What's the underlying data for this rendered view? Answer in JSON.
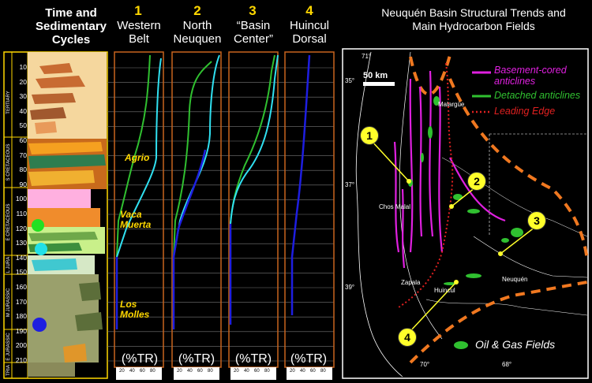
{
  "left_panel": {
    "title": "Time and Sedimentary Cycles",
    "era_labels": [
      "TERTIARY",
      "S CRETACEOUS",
      "E CRETACEOUS",
      "L JURA",
      "M JURASSIC",
      "E JURASSIC",
      "TRIA"
    ],
    "age_ticks": [
      "10",
      "20",
      "30",
      "40",
      "50",
      "60",
      "70",
      "80",
      "90",
      "100",
      "110",
      "120",
      "130",
      "140",
      "150",
      "160",
      "170",
      "180",
      "190",
      "200",
      "210"
    ]
  },
  "columns": [
    {
      "number": "1",
      "title": "Western Belt",
      "unit": "(%TR)"
    },
    {
      "number": "2",
      "title": "North Neuquen",
      "unit": "(%TR)"
    },
    {
      "number": "3",
      "title": "“Basin Center”",
      "unit": "(%TR)"
    },
    {
      "number": "4",
      "title": "Huincul Dorsal",
      "unit": "(%TR)"
    }
  ],
  "scale_ticks": [
    "20",
    "40",
    "60",
    "80"
  ],
  "formations": [
    "Agrio",
    "Vaca Muerta",
    "Los Molles"
  ],
  "map": {
    "title": "Neuquén Basin Structural Trends and Main Hydrocarbon Fields",
    "scale_label": "50 km",
    "legend": [
      {
        "label": "Basement-cored anticlines",
        "color": "#e020e0"
      },
      {
        "label": "Detached anticlines",
        "color": "#30c030"
      },
      {
        "label": "Leading Edge",
        "color": "#e02020"
      }
    ],
    "fields_label": "Oil & Gas Fields",
    "coords": [
      "71°",
      "35°",
      "37°",
      "39°",
      "70°",
      "68°"
    ],
    "places": [
      "Malargüe",
      "Chos Malal",
      "Zapala",
      "Huincul",
      "Neuquén"
    ],
    "callouts": [
      "1",
      "2",
      "3",
      "4"
    ]
  },
  "colors": {
    "accent": "#ffd800",
    "border": "#c8641e",
    "green": "#30c030",
    "cyan": "#30e0f0",
    "blue": "#1e1ee0"
  }
}
